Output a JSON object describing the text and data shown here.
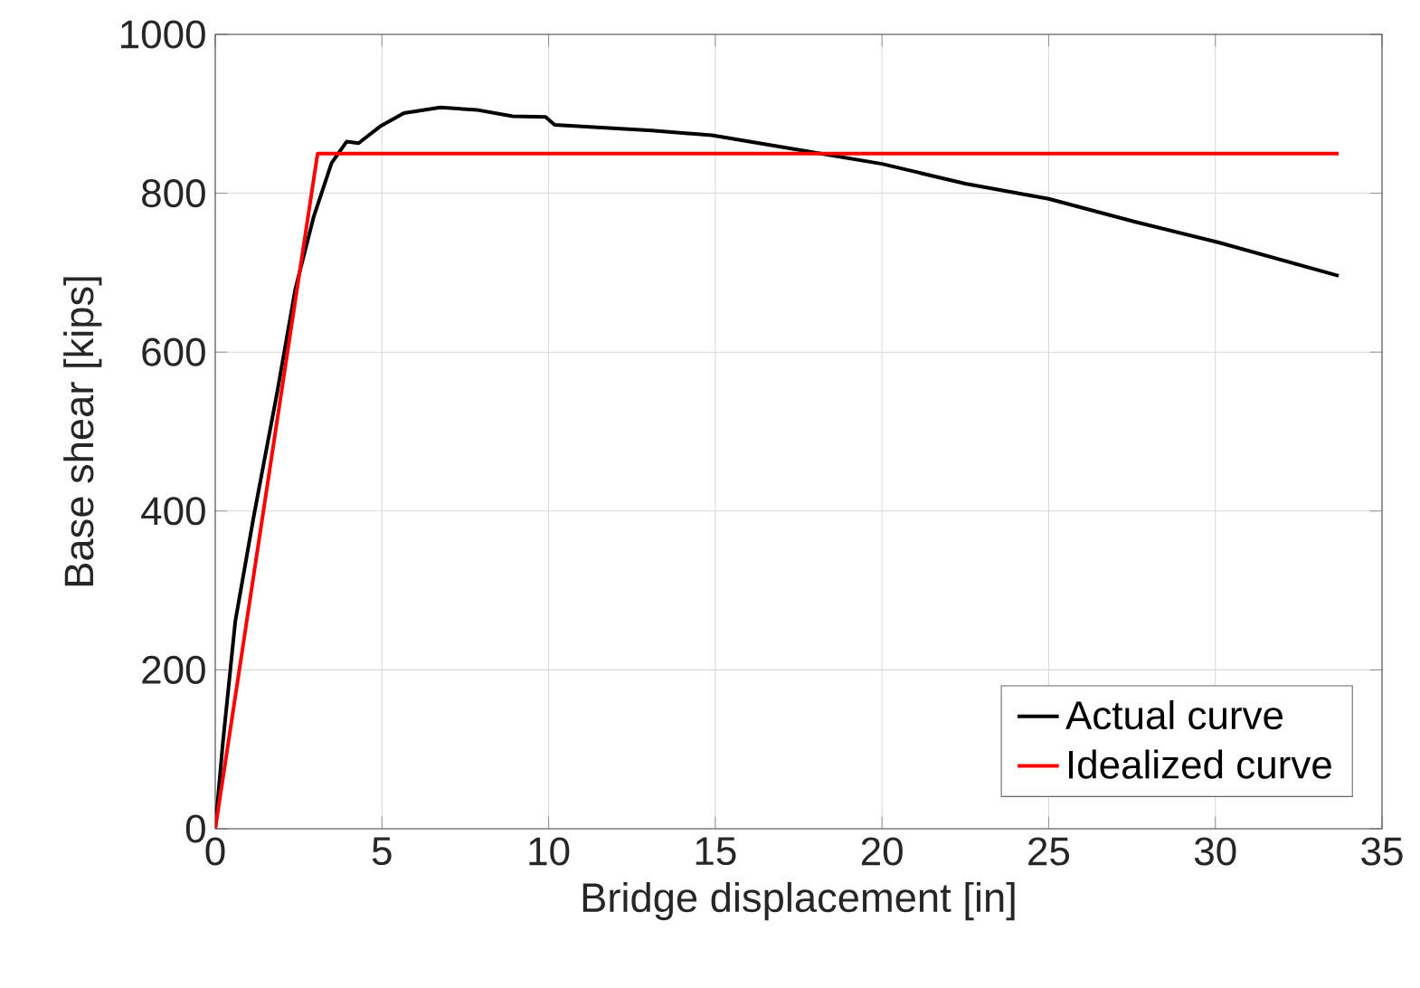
{
  "chart_data": {
    "type": "line",
    "xlabel": "Bridge displacement [in]",
    "ylabel": "Base shear [kips]",
    "xlim": [
      0,
      35
    ],
    "ylim": [
      0,
      1000
    ],
    "xticks": [
      0,
      5,
      10,
      15,
      20,
      25,
      30,
      35
    ],
    "yticks": [
      0,
      200,
      400,
      600,
      800,
      1000
    ],
    "grid": true,
    "legend": "bottom right",
    "line_style": "solid",
    "marker": "none",
    "series": [
      {
        "name": "Actual curve",
        "color": "#000000",
        "x": [
          0,
          0.23,
          0.6,
          1.14,
          1.86,
          2.4,
          2.95,
          3.49,
          3.94,
          4.3,
          4.94,
          5.66,
          6.75,
          7.84,
          8.92,
          9.91,
          10.18,
          13.1,
          14.9,
          17.6,
          20.0,
          22.5,
          25.0,
          27.6,
          30.1,
          33.7
        ],
        "values": [
          0,
          109,
          261,
          390,
          550,
          679,
          770,
          838,
          865,
          863,
          884,
          901,
          908,
          905,
          897,
          896,
          886,
          879,
          873,
          854,
          837,
          812,
          793,
          764,
          738,
          696
        ]
      },
      {
        "name": "Idealized curve",
        "color": "#ff0000",
        "x": [
          0,
          3.07,
          33.7
        ],
        "values": [
          0,
          850,
          850
        ]
      }
    ]
  }
}
